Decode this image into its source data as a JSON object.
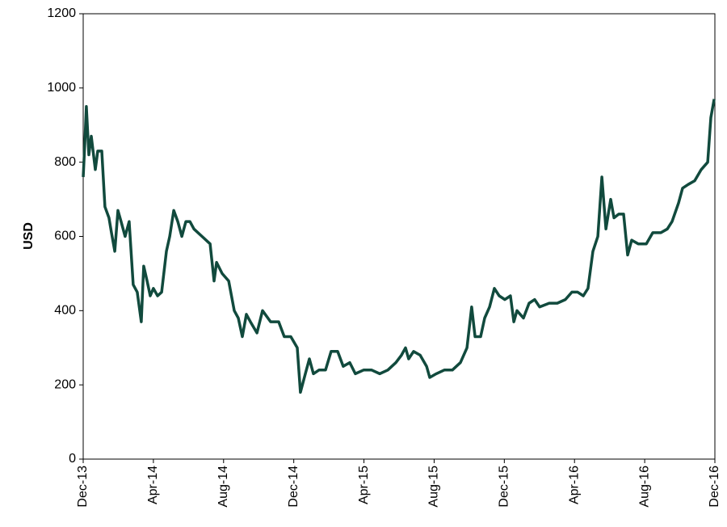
{
  "chart_data": {
    "type": "line",
    "y_label": "USD",
    "x": [
      0,
      0.09,
      0.18,
      0.32,
      0.46,
      0.69,
      0.83,
      1.06,
      1.24,
      1.47,
      1.61,
      1.8,
      1.98,
      2.16,
      2.39,
      2.62,
      2.85,
      3.08,
      3.31,
      3.45,
      3.64,
      3.82,
      4.0,
      4.24,
      4.47,
      4.74,
      4.93,
      5.16,
      5.39,
      5.62,
      5.85,
      6.08,
      6.31,
      6.77,
      7.23,
      7.46,
      7.6,
      7.92,
      8.29,
      8.61,
      8.84,
      9.07,
      9.3,
      9.53,
      9.9,
      10.22,
      10.68,
      11.14,
      11.46,
      11.83,
      12.2,
      12.38,
      12.66,
      12.89,
      13.12,
      13.44,
      13.81,
      14.13,
      14.5,
      14.82,
      15.19,
      15.51,
      15.98,
      16.44,
      16.9,
      17.36,
      17.82,
      18.14,
      18.37,
      18.55,
      18.83,
      19.2,
      19.57,
      19.75,
      20.12,
      20.58,
      21.04,
      21.5,
      21.87,
      22.14,
      22.33,
      22.65,
      22.88,
      23.16,
      23.43,
      23.71,
      24.03,
      24.35,
      24.54,
      24.72,
      25.09,
      25.41,
      25.73,
      26.01,
      26.56,
      27.02,
      27.48,
      27.85,
      28.18,
      28.5,
      28.77,
      29.05,
      29.33,
      29.56,
      29.79,
      30.06,
      30.25,
      30.52,
      30.8,
      31.03,
      31.26,
      31.63,
      32.09,
      32.46,
      32.92,
      33.29,
      33.56,
      33.93,
      34.16,
      34.48,
      34.85,
      35.22,
      35.59,
      35.77,
      35.96
    ],
    "series": [
      {
        "color": "#114a3d",
        "values": [
          760,
          850,
          950,
          820,
          870,
          780,
          830,
          830,
          680,
          650,
          610,
          560,
          670,
          640,
          600,
          640,
          470,
          450,
          370,
          520,
          480,
          440,
          460,
          440,
          450,
          560,
          600,
          670,
          640,
          600,
          640,
          640,
          620,
          600,
          580,
          480,
          530,
          500,
          480,
          400,
          380,
          330,
          390,
          370,
          340,
          400,
          370,
          370,
          330,
          330,
          300,
          180,
          230,
          270,
          230,
          240,
          240,
          290,
          290,
          250,
          260,
          230,
          240,
          240,
          230,
          240,
          260,
          280,
          300,
          270,
          290,
          280,
          250,
          220,
          230,
          240,
          240,
          260,
          300,
          410,
          330,
          330,
          380,
          410,
          460,
          440,
          430,
          440,
          370,
          400,
          380,
          420,
          430,
          410,
          420,
          420,
          430,
          450,
          450,
          440,
          460,
          560,
          600,
          760,
          620,
          700,
          650,
          660,
          660,
          550,
          590,
          580,
          580,
          610,
          610,
          620,
          640,
          690,
          730,
          740,
          750,
          780,
          800,
          920,
          970
        ]
      }
    ],
    "xlim": [
      0,
      36
    ],
    "xticks": [
      {
        "value": 0,
        "label": "Dec-13"
      },
      {
        "value": 4,
        "label": "Apr-14"
      },
      {
        "value": 8,
        "label": "Aug-14"
      },
      {
        "value": 12,
        "label": "Dec-14"
      },
      {
        "value": 16,
        "label": "Apr-15"
      },
      {
        "value": 20,
        "label": "Aug-15"
      },
      {
        "value": 24,
        "label": "Dec-15"
      },
      {
        "value": 28,
        "label": "Apr-16"
      },
      {
        "value": 32,
        "label": "Aug-16"
      },
      {
        "value": 36,
        "label": "Dec-16"
      }
    ],
    "ylim": [
      0,
      1200
    ],
    "yticks": [
      0,
      200,
      400,
      600,
      800,
      1000,
      1200
    ]
  }
}
